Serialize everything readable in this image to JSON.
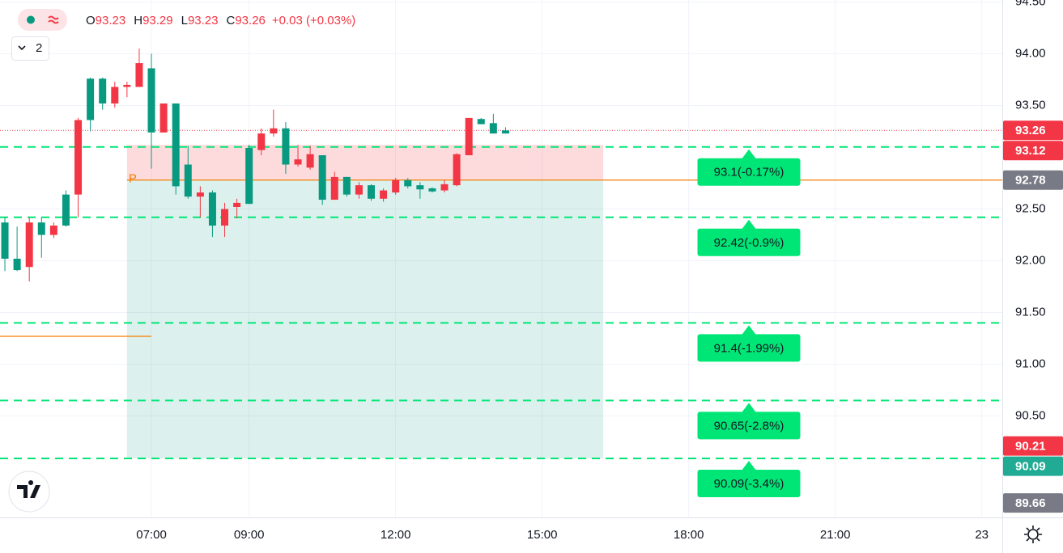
{
  "chart_data": {
    "type": "candlestick",
    "x": [
      4,
      4.25,
      4.5,
      4.75,
      5,
      5.25,
      5.5,
      5.75,
      6,
      6.25,
      6.5,
      6.75,
      7,
      7.25,
      7.5,
      7.75,
      8,
      8.25,
      8.5,
      8.75,
      9,
      9.25,
      9.5,
      9.75,
      10,
      10.25,
      10.5,
      10.75,
      11,
      11.25,
      11.5,
      11.75,
      12,
      12.25,
      12.5,
      12.75,
      13,
      13.25,
      13.5,
      13.75,
      14,
      14.25
    ],
    "open": [
      92.02,
      91.91,
      92.37,
      92.25,
      92.34,
      92.34,
      93.36,
      93.36,
      93.52,
      93.68,
      93.7,
      93.91,
      93.24,
      93.52,
      92.72,
      92.62,
      92.66,
      92.34,
      92.5,
      92.56,
      92.55,
      93.23,
      93.28,
      92.93,
      92.98,
      93.03,
      92.59,
      92.81,
      92.64,
      92.73,
      92.6,
      92.68,
      92.78,
      92.72,
      92.69,
      92.67,
      92.74,
      93.03,
      93.38,
      93.32,
      93.23,
      93.23
    ],
    "high": [
      92.42,
      92.33,
      92.42,
      92.42,
      92.37,
      92.68,
      93.38,
      93.77,
      93.77,
      93.73,
      93.73,
      94.05,
      94.0,
      93.52,
      93.52,
      93.11,
      92.72,
      92.68,
      92.56,
      92.6,
      93.12,
      93.28,
      93.46,
      93.34,
      93.12,
      93.11,
      93.02,
      92.86,
      92.81,
      92.76,
      92.74,
      92.7,
      92.8,
      92.8,
      92.76,
      92.71,
      92.78,
      93.04,
      93.38,
      93.38,
      93.42,
      93.29
    ],
    "low": [
      91.9,
      91.9,
      91.8,
      92.03,
      92.22,
      92.33,
      92.42,
      93.25,
      93.46,
      93.48,
      93.58,
      93.68,
      92.89,
      93.24,
      92.64,
      92.6,
      92.42,
      92.23,
      92.23,
      92.41,
      92.55,
      93.02,
      93.2,
      92.84,
      92.91,
      92.88,
      92.54,
      92.59,
      92.62,
      92.6,
      92.58,
      92.57,
      92.64,
      92.7,
      92.6,
      92.66,
      92.66,
      92.72,
      93.02,
      93.32,
      93.23,
      93.23
    ],
    "close": [
      92.37,
      92.02,
      91.94,
      92.37,
      92.25,
      92.64,
      92.64,
      93.76,
      93.76,
      93.52,
      93.68,
      93.68,
      93.86,
      93.24,
      93.52,
      92.93,
      92.62,
      92.66,
      92.34,
      92.52,
      93.09,
      93.07,
      93.23,
      93.28,
      92.93,
      92.9,
      93.02,
      92.59,
      92.81,
      92.64,
      92.73,
      92.6,
      92.66,
      92.78,
      92.73,
      92.7,
      92.68,
      92.73,
      93.02,
      93.37,
      93.33,
      93.26
    ],
    "up_color": "#089981",
    "down_color": "#f23645",
    "xlim": [
      3.9,
      24.42
    ],
    "ylim": [
      89.52,
      94.52
    ],
    "xticks": [
      {
        "value": 7,
        "label": "07:00"
      },
      {
        "value": 9,
        "label": "09:00"
      },
      {
        "value": 12,
        "label": "12:00"
      },
      {
        "value": 15,
        "label": "15:00"
      },
      {
        "value": 18,
        "label": "18:00"
      },
      {
        "value": 21,
        "label": "21:00"
      },
      {
        "value": 24,
        "label": "23"
      }
    ],
    "yticks": [
      {
        "value": 94.5,
        "label": "94.50"
      },
      {
        "value": 94,
        "label": "94.00"
      },
      {
        "value": 93.5,
        "label": "93.50"
      },
      {
        "value": 92.5,
        "label": "92.50"
      },
      {
        "value": 92,
        "label": "92.00"
      },
      {
        "value": 91.5,
        "label": "91.50"
      },
      {
        "value": 91,
        "label": "91.00"
      },
      {
        "value": 90.5,
        "label": "90.50"
      }
    ],
    "grid": true,
    "ohlc_labels": [
      "O",
      "H",
      "L",
      "C"
    ],
    "change": "+0.03 (+0.03%)",
    "legend_count": "2",
    "current_price": 93.26,
    "position": {
      "entry": 92.78,
      "stop": 93.12,
      "target": 90.09,
      "from": 6.5,
      "to": 16.25
    },
    "pivot_lines": [
      {
        "value": 92.78,
        "from": 6.5,
        "label": "P"
      },
      {
        "value": 91.27,
        "to": 7
      }
    ],
    "pivot_color": "#f57c00",
    "level_color": "#00e676",
    "levels": [
      {
        "value": 93.1,
        "label": "93.1(-0.17%)"
      },
      {
        "value": 92.42,
        "label": "92.42(-0.9%)"
      },
      {
        "value": 91.4,
        "label": "91.4(-1.99%)"
      },
      {
        "value": 90.65,
        "label": "90.65(-2.8%)"
      },
      {
        "value": 90.09,
        "label": "90.09(-3.4%)"
      }
    ],
    "price_labels": [
      {
        "value": 93.26,
        "color": "#f23645"
      },
      {
        "value": 93.12,
        "color": "#f23645"
      },
      {
        "value": 92.78,
        "color": "#787b86"
      },
      {
        "value": 90.21,
        "color": "#f23645"
      },
      {
        "value": 90.09,
        "color": "#22ab94"
      },
      {
        "value": 89.66,
        "color": "#787b86"
      }
    ]
  }
}
